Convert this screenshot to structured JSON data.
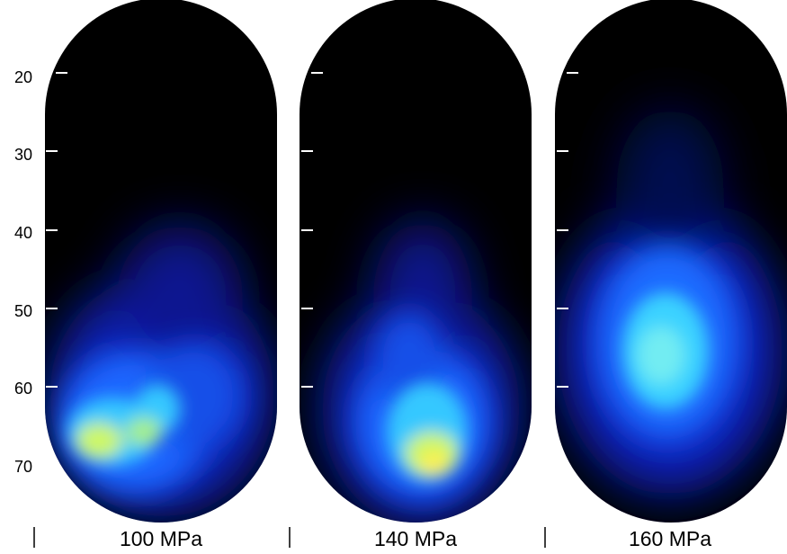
{
  "y_axis": {
    "ticks": [
      "20",
      "30",
      "40",
      "50",
      "60",
      "70"
    ]
  },
  "panels": [
    {
      "label": "100 MPa"
    },
    {
      "label": "140 MPa"
    },
    {
      "label": "160 MPa"
    }
  ],
  "colors": {
    "background": "#ffffff",
    "chamber": "#000000",
    "flame_dim": "#0a1aa8",
    "flame_mid": "#1a6bff",
    "flame_bright": "#46e0ff",
    "flame_peak": "#fff35a"
  }
}
